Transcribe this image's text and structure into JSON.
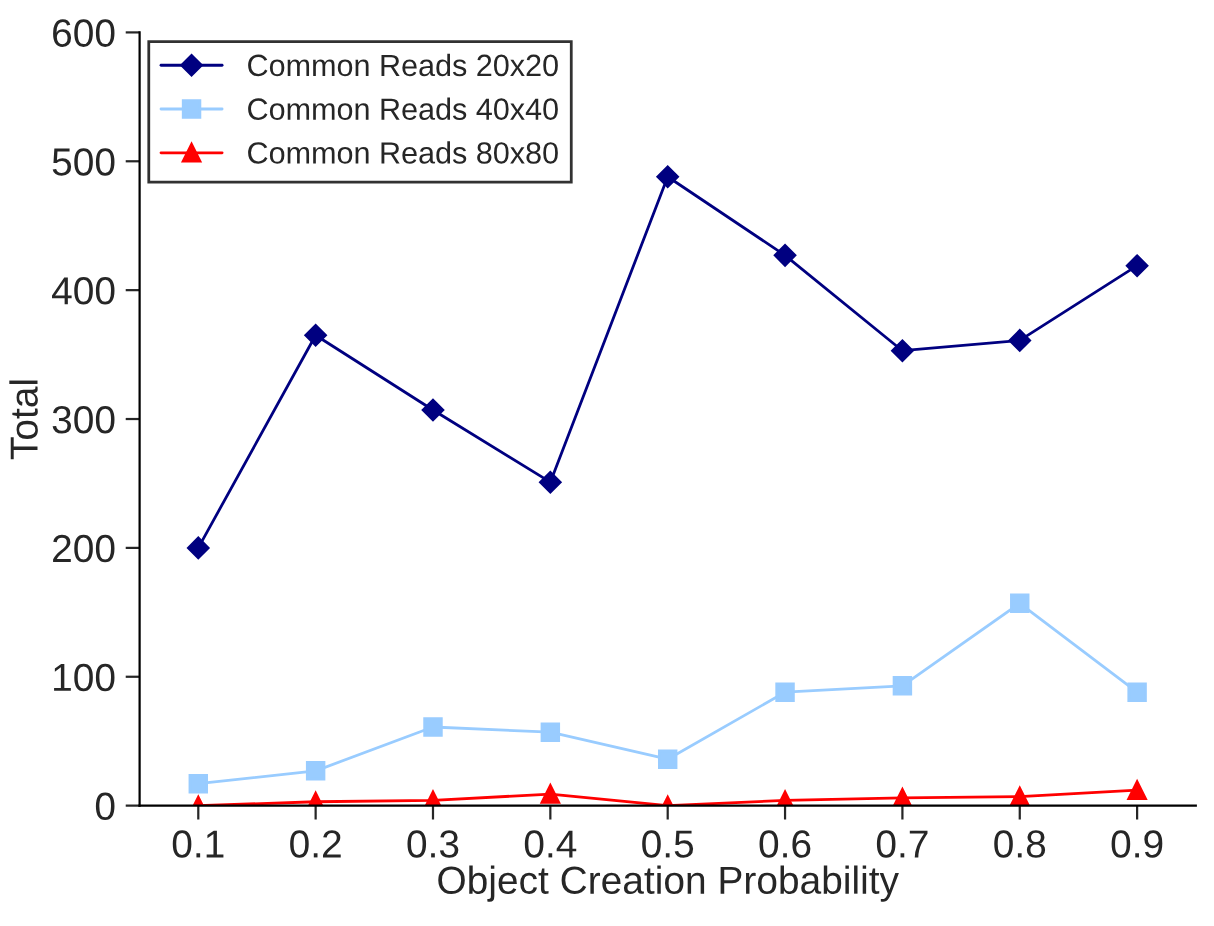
{
  "chart_data": {
    "type": "line",
    "xlabel": "Object Creation Probability",
    "ylabel": "Total",
    "categories": [
      "0.1",
      "0.2",
      "0.3",
      "0.4",
      "0.5",
      "0.6",
      "0.7",
      "0.8",
      "0.9"
    ],
    "series": [
      {
        "name": "Common Reads 20x20",
        "color": "#000080",
        "marker": "diamond",
        "values": [
          200,
          365,
          307,
          251,
          488,
          427,
          353,
          361,
          419
        ]
      },
      {
        "name": "Common Reads 40x40",
        "color": "#99ccff",
        "marker": "square",
        "values": [
          17,
          27,
          61,
          57,
          36,
          88,
          93,
          157,
          88
        ]
      },
      {
        "name": "Common Reads 80x80",
        "color": "#ff0000",
        "marker": "triangle",
        "values": [
          0,
          3,
          4,
          9,
          0,
          4,
          6,
          7,
          12
        ]
      }
    ],
    "ylim": [
      0,
      600
    ],
    "yticks": [
      0,
      100,
      200,
      300,
      400,
      500,
      600
    ],
    "grid": false,
    "legend": "top left"
  }
}
